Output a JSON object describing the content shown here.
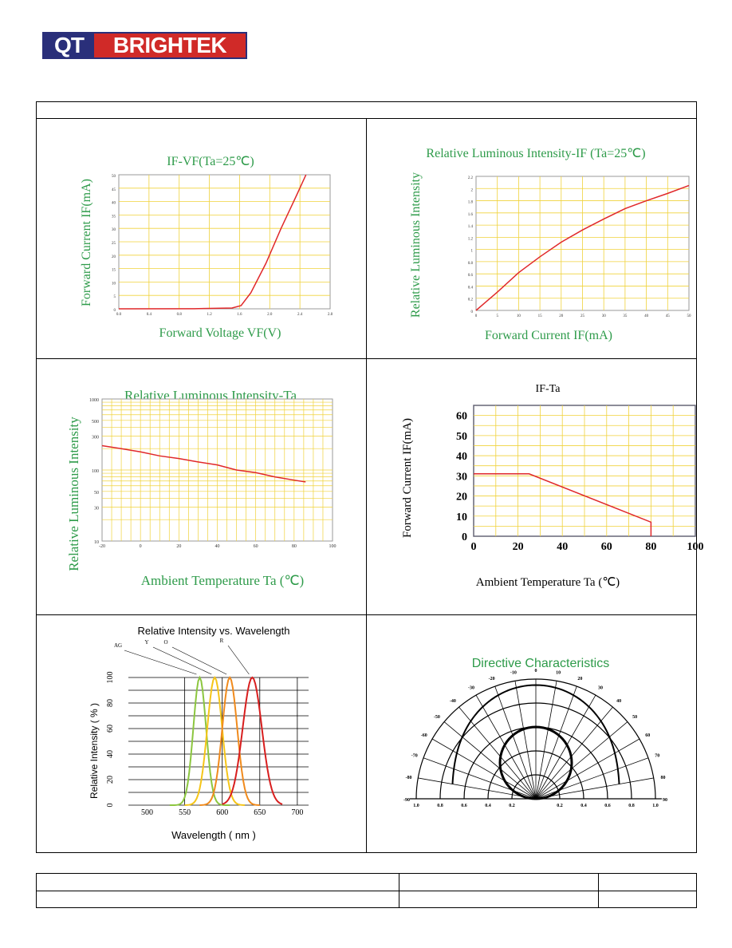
{
  "logo": {
    "qt": "QT",
    "brand": "BRIGHTEK"
  },
  "charts": {
    "ifvf": {
      "title": "IF-VF(Ta=25℃)",
      "ylabel": "Forward Current IF(mA)",
      "xlabel": "Forward Voltage VF(V)",
      "xticks": [
        "0.0",
        "0.4",
        "0.8",
        "1.2",
        "1.6",
        "2.0",
        "2.4",
        "2.8"
      ],
      "yticks": [
        "0",
        "5",
        "10",
        "15",
        "20",
        "25",
        "30",
        "35",
        "40",
        "45",
        "50"
      ]
    },
    "rli_if": {
      "title": "Relative Luminous Intensity-IF (Ta=25℃)",
      "ylabel": "Relative Luminous Intensity",
      "xlabel": "Forward Current IF(mA)",
      "xticks": [
        "0",
        "5",
        "10",
        "15",
        "20",
        "25",
        "30",
        "35",
        "40",
        "45",
        "50"
      ],
      "yticks": [
        "0",
        "0.2",
        "0.4",
        "0.6",
        "0.8",
        "1",
        "1.2",
        "1.4",
        "1.6",
        "1.8",
        "2",
        "2.2"
      ]
    },
    "rli_ta": {
      "title": "Relative Luminous Intensity-Ta",
      "ylabel": "Relative Luminous Intensity",
      "xlabel": "Ambient Temperature Ta (℃)",
      "xticks": [
        "-20",
        "0",
        "20",
        "40",
        "60",
        "80",
        "100"
      ],
      "yticks": [
        "10",
        "30",
        "50",
        "100",
        "300",
        "500",
        "1000"
      ]
    },
    "if_ta": {
      "title": "IF-Ta",
      "ylabel": "Forward Current IF(mA)",
      "xlabel": "Ambient Temperature Ta (℃)",
      "xticks": [
        "0",
        "20",
        "40",
        "60",
        "80",
        "100"
      ],
      "yticks": [
        "0",
        "10",
        "20",
        "30",
        "40",
        "50",
        "60"
      ]
    },
    "spectrum": {
      "title": "Relative Intensity vs. Wavelength",
      "ylabel": "Relative Intensity ( % )",
      "xlabel": "Wavelength ( nm )",
      "xticks": [
        "500",
        "550",
        "600",
        "650",
        "700"
      ],
      "yticks": [
        "0",
        "20",
        "40",
        "60",
        "80",
        "100"
      ],
      "peak_labels": [
        "AG",
        "Y",
        "O",
        "R"
      ]
    },
    "directive": {
      "title": "Directive Characteristics",
      "angle_labels": [
        "0",
        "10",
        "-10",
        "20",
        "-20",
        "30",
        "-30",
        "40",
        "-40",
        "50",
        "-50",
        "60",
        "-60",
        "70",
        "-70",
        "80",
        "-80",
        "90",
        "-90"
      ],
      "radial_labels": [
        "1.0",
        "0.8",
        "0.6",
        "0.4",
        "0.2",
        "0.2",
        "0.4",
        "0.6",
        "0.8",
        "1.0"
      ]
    }
  },
  "colors": {
    "axis_text_green": "#2e9b4a",
    "grid_yellow": "#f0d23a",
    "curve_red": "#e0282a",
    "spec_ag": "#8cc63f",
    "spec_y": "#f5c518",
    "spec_o": "#f08a1c",
    "spec_r": "#d81e1e",
    "logo_blue": "#2a2f7a",
    "logo_red": "#d02a28"
  }
}
